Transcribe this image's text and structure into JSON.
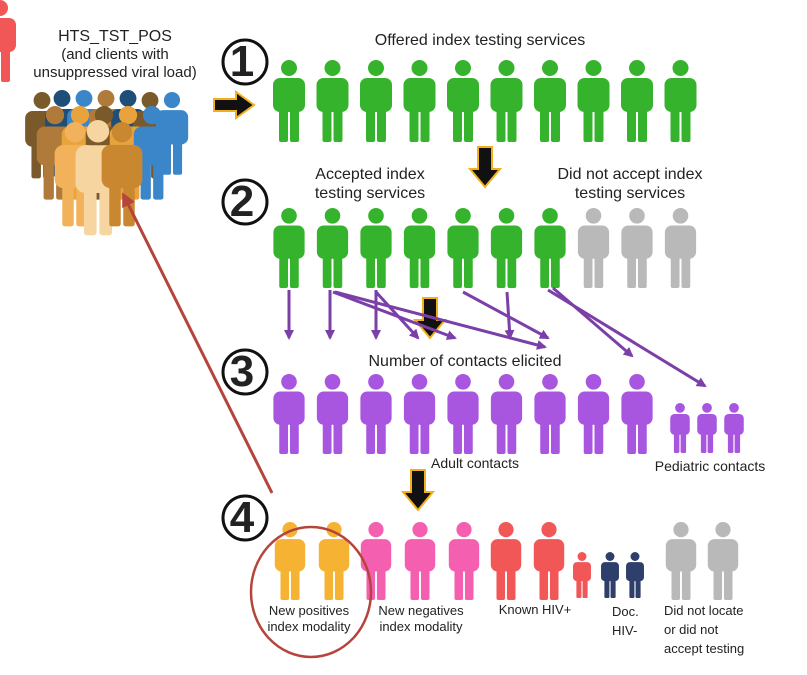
{
  "source": {
    "title": "HTS_TST_POS",
    "subtitle_line1": "(and clients with",
    "subtitle_line2": "unsuppressed viral load)",
    "crowd_colors": [
      "#7a5a2a",
      "#1f4e79",
      "#3a86c8",
      "#b07a3a",
      "#e8a33c",
      "#8ecae6",
      "#f6d5a0",
      "#f2b25b",
      "#c9872f"
    ]
  },
  "steps": [
    {
      "number": "1",
      "label": "Offered index testing services",
      "count": 10,
      "color": "#36b32c"
    },
    {
      "number": "2",
      "accepted_line1": "Accepted index",
      "accepted_line2": "testing services",
      "declined_line1": "Did not accept index",
      "declined_line2": "testing services",
      "accepted_count": 7,
      "declined_count": 3,
      "color": "#36b32c",
      "declined_color": "#b9b9b9"
    },
    {
      "number": "3",
      "label": "Number of contacts elicited",
      "adult_count": 9,
      "pediatric_count": 3,
      "adult_label": "Adult contacts",
      "pediatric_label": "Pediatric contacts",
      "color": "#a855e0"
    },
    {
      "number": "4",
      "groups": [
        {
          "line1": "New positives",
          "line2": "index modality",
          "line3": "",
          "count": 2,
          "color": "#f6b333"
        },
        {
          "line1": "New negatives",
          "line2": "index modality",
          "line3": "",
          "count": 3,
          "color": "#f45fb0"
        },
        {
          "line1": "Known HIV+",
          "line2": "",
          "line3": "",
          "count": 3,
          "color": "#f25757"
        },
        {
          "line1": "Doc.",
          "line2": "HIV-",
          "line3": "",
          "count": 2,
          "color": "#2f3f6b"
        },
        {
          "line1": "Did not locate",
          "line2": "or did not",
          "line3": "accept testing",
          "count": 2,
          "color": "#b9b9b9"
        }
      ]
    }
  ],
  "colors": {
    "arrow": "#111111",
    "arrow_outline": "#f2b01e",
    "purple_arrow": "#7b3fa8",
    "loop_arrow": "#b5443c"
  }
}
